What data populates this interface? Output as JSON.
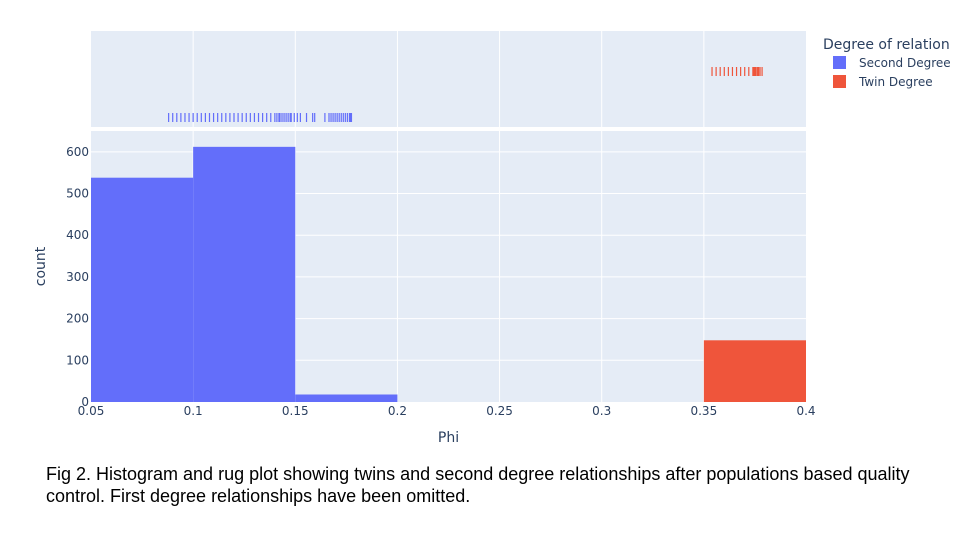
{
  "caption": "Fig 2. Histogram and rug plot showing twins and second degree relationships after populations based quality control. First degree relationships have been omitted.",
  "chart_data": {
    "type": "bar",
    "subtype": "histogram with marginal rug plot",
    "xlabel": "Phi",
    "ylabel": "count",
    "xlim": [
      0.05,
      0.4
    ],
    "ylim": [
      0,
      650
    ],
    "x_ticks": [
      0.05,
      0.1,
      0.15,
      0.2,
      0.25,
      0.3,
      0.35,
      0.4
    ],
    "x_tick_labels": [
      "0.05",
      "0.1",
      "0.15",
      "0.2",
      "0.25",
      "0.3",
      "0.35",
      "0.4"
    ],
    "y_ticks": [
      0,
      100,
      200,
      300,
      400,
      500,
      600
    ],
    "y_tick_labels": [
      "0",
      "100",
      "200",
      "300",
      "400",
      "500",
      "600"
    ],
    "grid": true,
    "legend_title": "Degree of relation",
    "legend_position": "top-right",
    "series": [
      {
        "name": "Second Degree",
        "color": "#636efa",
        "bins": [
          {
            "x0": 0.05,
            "x1": 0.1,
            "count": 538
          },
          {
            "x0": 0.1,
            "x1": 0.15,
            "count": 612
          },
          {
            "x0": 0.15,
            "x1": 0.2,
            "count": 18
          }
        ],
        "rug": [
          0.088,
          0.09,
          0.092,
          0.094,
          0.096,
          0.098,
          0.1,
          0.102,
          0.104,
          0.106,
          0.108,
          0.11,
          0.112,
          0.114,
          0.116,
          0.118,
          0.12,
          0.122,
          0.124,
          0.126,
          0.128,
          0.13,
          0.132,
          0.134,
          0.136,
          0.138,
          0.14,
          0.141,
          0.142,
          0.1425,
          0.1435,
          0.1445,
          0.1455,
          0.1465,
          0.1475,
          0.148,
          0.1495,
          0.151,
          0.1525,
          0.1555,
          0.1585,
          0.1595,
          0.1645,
          0.1665,
          0.1675,
          0.1685,
          0.1695,
          0.1705,
          0.1715,
          0.1725,
          0.1735,
          0.1745,
          0.1755,
          0.1765,
          0.177,
          0.1775
        ]
      },
      {
        "name": "Twin Degree",
        "color": "#ef553b",
        "bins": [
          {
            "x0": 0.35,
            "x1": 0.4,
            "count": 148
          }
        ],
        "rug": [
          0.354,
          0.356,
          0.358,
          0.36,
          0.362,
          0.364,
          0.366,
          0.368,
          0.37,
          0.372,
          0.374,
          0.3745,
          0.375,
          0.3755,
          0.3762,
          0.3768,
          0.3775,
          0.3785
        ]
      }
    ]
  }
}
